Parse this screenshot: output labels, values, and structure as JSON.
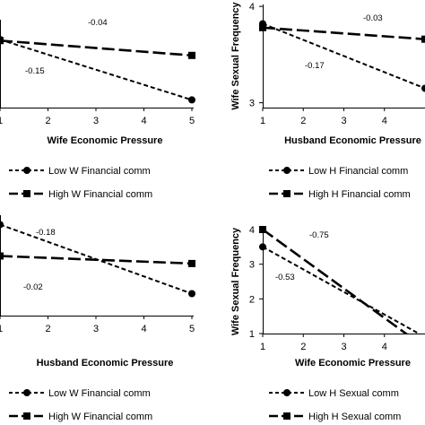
{
  "chart_data": [
    {
      "type": "line",
      "xlabel": "Wife Economic Pressure",
      "ylabel": "",
      "x_ticks": [
        1,
        2,
        3,
        4,
        5
      ],
      "y_ticks": [],
      "xlim": [
        1,
        5
      ],
      "ylim": [
        2.6,
        4.2
      ],
      "series": [
        {
          "name": "Low W Financial comm",
          "style": "short-dash",
          "marker": "circle",
          "x": [
            1,
            5
          ],
          "y": [
            3.84,
            2.74
          ]
        },
        {
          "name": "High W Financial comm",
          "style": "long-dash",
          "marker": "square",
          "x": [
            1,
            5
          ],
          "y": [
            3.82,
            3.55
          ]
        }
      ],
      "annotations": [
        {
          "text": "-0.04",
          "for": "High W Financial comm"
        },
        {
          "text": "-0.15",
          "for": "Low W Financial comm"
        }
      ]
    },
    {
      "type": "line",
      "xlabel": "Husband Economic Pressure",
      "ylabel": "Wife Sexual Frequency",
      "x_ticks": [
        1,
        2,
        3,
        4
      ],
      "y_ticks": [
        3,
        4
      ],
      "xlim": [
        1,
        5
      ],
      "ylim": [
        2.95,
        4.02
      ],
      "series": [
        {
          "name": "Low H Financial comm",
          "style": "short-dash",
          "marker": "circle",
          "x": [
            1,
            5
          ],
          "y": [
            3.82,
            3.15
          ]
        },
        {
          "name": "High H Financial comm",
          "style": "long-dash",
          "marker": "square",
          "x": [
            1,
            5
          ],
          "y": [
            3.78,
            3.66
          ]
        }
      ],
      "annotations": [
        {
          "text": "-0.03",
          "for": "High H Financial comm"
        },
        {
          "text": "-0.17",
          "for": "Low H Financial comm"
        }
      ]
    },
    {
      "type": "line",
      "xlabel": "Husband Economic Pressure",
      "ylabel": "",
      "x_ticks": [
        1,
        2,
        3,
        4,
        5
      ],
      "y_ticks": [],
      "xlim": [
        1,
        5
      ],
      "ylim": [
        2.6,
        4.2
      ],
      "series": [
        {
          "name": "Low W Financial comm",
          "style": "short-dash",
          "marker": "circle",
          "x": [
            1,
            5
          ],
          "y": [
            4.05,
            2.95
          ]
        },
        {
          "name": "High W Financial comm",
          "style": "long-dash",
          "marker": "square",
          "x": [
            1,
            5
          ],
          "y": [
            3.55,
            3.43
          ]
        }
      ],
      "annotations": [
        {
          "text": "-0.18",
          "for": "Low W Financial comm"
        },
        {
          "text": "-0.02",
          "for": "High W Financial comm"
        }
      ]
    },
    {
      "type": "line",
      "xlabel": "Wife Economic Pressure",
      "ylabel": "Wife Sexual Frequency",
      "x_ticks": [
        1,
        2,
        3,
        4
      ],
      "y_ticks": [
        1,
        2,
        3,
        4
      ],
      "xlim": [
        1,
        5
      ],
      "ylim": [
        1,
        4
      ],
      "series": [
        {
          "name": "Low H Sexual comm",
          "style": "short-dash",
          "marker": "circle",
          "x": [
            1,
            5
          ],
          "y": [
            3.5,
            0.9
          ]
        },
        {
          "name": "High H Sexual comm",
          "style": "long-dash",
          "marker": "square",
          "x": [
            1,
            5
          ],
          "y": [
            4.0,
            0.6
          ]
        }
      ],
      "annotations": [
        {
          "text": "-0.75",
          "for": "High H Sexual comm"
        },
        {
          "text": "-0.53",
          "for": "Low H Sexual comm"
        }
      ]
    }
  ]
}
